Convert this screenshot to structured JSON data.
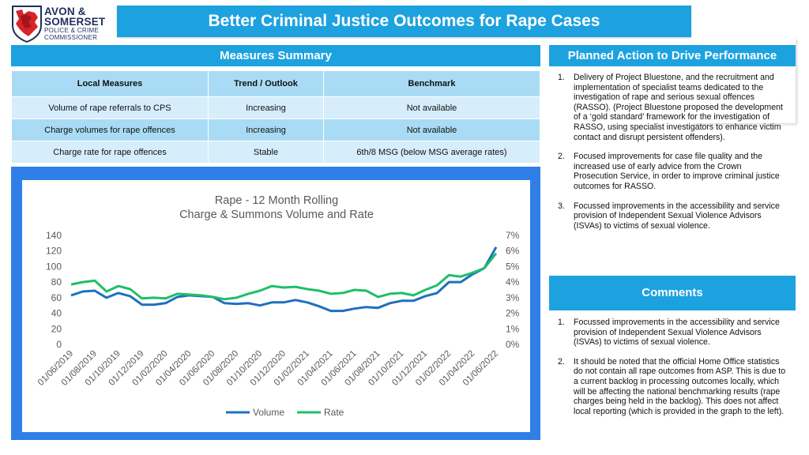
{
  "logo": {
    "line1": "AVON &",
    "line2": "SOMERSET",
    "line3": "POLICE & CRIME",
    "line4": "COMMISSIONER"
  },
  "title": "Better Criminal Justice Outcomes for Rape Cases",
  "summary": {
    "header": "Measures Summary",
    "columns": [
      "Local Measures",
      "Trend / Outlook",
      "Benchmark"
    ],
    "rows": [
      [
        "Volume of rape referrals to CPS",
        "Increasing",
        "Not available"
      ],
      [
        "Charge volumes for rape offences",
        "Increasing",
        "Not available"
      ],
      [
        "Charge rate for rape offences",
        "Stable",
        "6th/8 MSG (below MSG average rates)"
      ]
    ]
  },
  "actions": {
    "header": "Planned Action to Drive Performance",
    "items": [
      {
        "num": "1.",
        "text": "Delivery of Project Bluestone, and the recruitment and implementation of specialist teams dedicated to the investigation of rape and serious sexual offences (RASSO). (Project Bluestone proposed the development of a ‘gold standard’ framework for the investigation of RASSO, using specialist investigators to enhance victim contact and disrupt persistent offenders)."
      },
      {
        "num": "2.",
        "text": "Focused improvements for case file quality and the increased use of early advice from the Crown Prosecution Service, in order to improve criminal justice outcomes for RASSO."
      },
      {
        "num": "3.",
        "text": "Focussed improvements in the accessibility and service provision of Independent Sexual Violence Advisors (ISVAs) to victims of sexual violence."
      }
    ]
  },
  "comments": {
    "header": "Comments",
    "items": [
      {
        "num": "1.",
        "text": "Focussed improvements in the accessibility and service provision of Independent Sexual Violence Advisors (ISVAs) to victims of sexual violence."
      },
      {
        "num": "2.",
        "text": "It should be noted that the official Home Office statistics do not contain all rape outcomes from ASP. This is due to a current backlog in processing outcomes locally, which will be affecting the national benchmarking results (rape charges being held in the backlog). This does not affect local reporting (which is provided in the graph to the left)."
      }
    ]
  },
  "chart_data": {
    "type": "line",
    "title": "Rape - 12 Month Rolling",
    "subtitle": "Charge & Summons Volume and Rate",
    "x": [
      "01/06/2019",
      "01/07/2019",
      "01/08/2019",
      "01/09/2019",
      "01/10/2019",
      "01/11/2019",
      "01/12/2019",
      "01/01/2020",
      "01/02/2020",
      "01/03/2020",
      "01/04/2020",
      "01/05/2020",
      "01/06/2020",
      "01/07/2020",
      "01/08/2020",
      "01/09/2020",
      "01/10/2020",
      "01/11/2020",
      "01/12/2020",
      "01/01/2021",
      "01/02/2021",
      "01/03/2021",
      "01/04/2021",
      "01/05/2021",
      "01/06/2021",
      "01/07/2021",
      "01/08/2021",
      "01/09/2021",
      "01/10/2021",
      "01/11/2021",
      "01/12/2021",
      "01/01/2022",
      "01/02/2022",
      "01/03/2022",
      "01/04/2022",
      "01/05/2022",
      "01/06/2022"
    ],
    "x_tick_labels": [
      "01/06/2019",
      "01/08/2019",
      "01/10/2019",
      "01/12/2019",
      "01/02/2020",
      "01/04/2020",
      "01/06/2020",
      "01/08/2020",
      "01/10/2020",
      "01/12/2020",
      "01/02/2021",
      "01/04/2021",
      "01/06/2021",
      "01/08/2021",
      "01/10/2021",
      "01/12/2021",
      "01/02/2022",
      "01/04/2022",
      "01/06/2022"
    ],
    "y_left_ticks": [
      "0",
      "20",
      "40",
      "60",
      "80",
      "100",
      "120",
      "140"
    ],
    "y_right_ticks": [
      "0%",
      "1%",
      "2%",
      "3%",
      "4%",
      "5%",
      "6%",
      "7%"
    ],
    "ylim_left": [
      0,
      140
    ],
    "ylim_right": [
      0,
      0.07
    ],
    "grid": false,
    "legend_position": "bottom",
    "series": [
      {
        "name": "Volume",
        "axis": "left",
        "color": "#1f6fbf",
        "values": [
          63,
          68,
          69,
          60,
          66,
          62,
          51,
          51,
          53,
          61,
          63,
          62,
          61,
          53,
          52,
          53,
          50,
          54,
          54,
          57,
          54,
          49,
          43,
          43,
          46,
          48,
          47,
          53,
          56,
          56,
          62,
          66,
          80,
          80,
          90,
          98,
          125
        ]
      },
      {
        "name": "Rate",
        "axis": "right",
        "color": "#1fbf68",
        "values": [
          0.0385,
          0.04,
          0.041,
          0.034,
          0.0375,
          0.0355,
          0.0295,
          0.03,
          0.0295,
          0.0325,
          0.032,
          0.0315,
          0.0305,
          0.029,
          0.03,
          0.0325,
          0.0345,
          0.0375,
          0.0365,
          0.037,
          0.0355,
          0.0345,
          0.0325,
          0.033,
          0.035,
          0.0345,
          0.0305,
          0.0325,
          0.033,
          0.0315,
          0.035,
          0.038,
          0.0445,
          0.0435,
          0.046,
          0.049,
          0.0585
        ]
      }
    ]
  }
}
